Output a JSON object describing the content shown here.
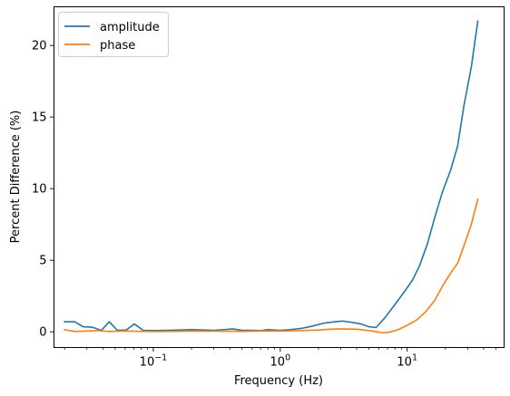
{
  "chart_data": {
    "type": "line",
    "xscale": "log",
    "xlabel": "Frequency (Hz)",
    "ylabel": "Percent Difference (%)",
    "xlim": [
      0.0165,
      58
    ],
    "ylim": [
      -1.1,
      22.7
    ],
    "xticks": [
      {
        "value": 0.1,
        "base": "10",
        "exp": "−1"
      },
      {
        "value": 1,
        "base": "10",
        "exp": "0"
      },
      {
        "value": 10,
        "base": "10",
        "exp": "1"
      }
    ],
    "yticks": [
      {
        "value": 0,
        "label": "0"
      },
      {
        "value": 5,
        "label": "5"
      },
      {
        "value": 10,
        "label": "10"
      },
      {
        "value": 15,
        "label": "15"
      },
      {
        "value": 20,
        "label": "20"
      }
    ],
    "legend_position": "top-left",
    "grid": false,
    "series": [
      {
        "name": "amplitude",
        "color": "#1f77b4",
        "points": [
          [
            0.02,
            0.7
          ],
          [
            0.024,
            0.7
          ],
          [
            0.028,
            0.35
          ],
          [
            0.033,
            0.32
          ],
          [
            0.039,
            0.1
          ],
          [
            0.045,
            0.7
          ],
          [
            0.052,
            0.1
          ],
          [
            0.061,
            0.12
          ],
          [
            0.071,
            0.55
          ],
          [
            0.083,
            0.1
          ],
          [
            0.1,
            0.08
          ],
          [
            0.13,
            0.1
          ],
          [
            0.16,
            0.12
          ],
          [
            0.2,
            0.15
          ],
          [
            0.25,
            0.12
          ],
          [
            0.3,
            0.1
          ],
          [
            0.36,
            0.15
          ],
          [
            0.42,
            0.2
          ],
          [
            0.5,
            0.1
          ],
          [
            0.6,
            0.1
          ],
          [
            0.7,
            0.08
          ],
          [
            0.8,
            0.15
          ],
          [
            1.0,
            0.1
          ],
          [
            1.2,
            0.15
          ],
          [
            1.5,
            0.25
          ],
          [
            1.8,
            0.4
          ],
          [
            2.2,
            0.6
          ],
          [
            2.7,
            0.7
          ],
          [
            3.1,
            0.75
          ],
          [
            3.7,
            0.65
          ],
          [
            4.3,
            0.55
          ],
          [
            5.0,
            0.35
          ],
          [
            5.7,
            0.3
          ],
          [
            6.7,
            1.0
          ],
          [
            8.0,
            1.9
          ],
          [
            9.5,
            2.8
          ],
          [
            11.0,
            3.6
          ],
          [
            12.5,
            4.6
          ],
          [
            14.5,
            6.2
          ],
          [
            16.5,
            8.0
          ],
          [
            19.0,
            9.8
          ],
          [
            22.0,
            11.3
          ],
          [
            25.0,
            13.0
          ],
          [
            28.0,
            15.8
          ],
          [
            32.0,
            18.5
          ],
          [
            36.0,
            21.7
          ]
        ]
      },
      {
        "name": "phase",
        "color": "#ff7f0e",
        "points": [
          [
            0.02,
            0.15
          ],
          [
            0.024,
            0.02
          ],
          [
            0.03,
            0.05
          ],
          [
            0.037,
            0.08
          ],
          [
            0.045,
            0.02
          ],
          [
            0.06,
            0.05
          ],
          [
            0.08,
            0.03
          ],
          [
            0.1,
            0.02
          ],
          [
            0.15,
            0.03
          ],
          [
            0.2,
            0.05
          ],
          [
            0.3,
            0.04
          ],
          [
            0.5,
            0.03
          ],
          [
            0.7,
            0.05
          ],
          [
            1.0,
            0.05
          ],
          [
            1.5,
            0.08
          ],
          [
            2.0,
            0.12
          ],
          [
            2.5,
            0.18
          ],
          [
            3.0,
            0.2
          ],
          [
            4.0,
            0.18
          ],
          [
            4.8,
            0.1
          ],
          [
            5.6,
            0.02
          ],
          [
            6.5,
            -0.08
          ],
          [
            7.3,
            -0.02
          ],
          [
            8.5,
            0.15
          ],
          [
            10.0,
            0.45
          ],
          [
            12.0,
            0.85
          ],
          [
            14.0,
            1.4
          ],
          [
            16.5,
            2.2
          ],
          [
            19.0,
            3.2
          ],
          [
            22.0,
            4.1
          ],
          [
            25.0,
            4.8
          ],
          [
            28.0,
            6.0
          ],
          [
            32.0,
            7.5
          ],
          [
            36.0,
            9.25
          ]
        ]
      }
    ]
  }
}
